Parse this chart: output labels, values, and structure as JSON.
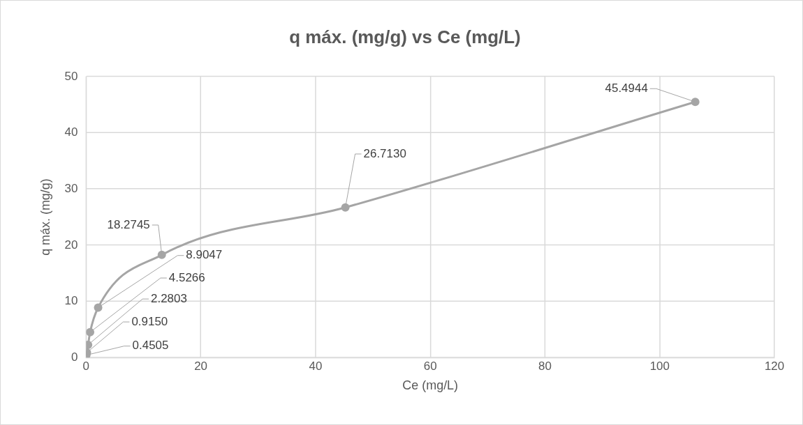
{
  "chart_data": {
    "type": "scatter",
    "title": "q máx. (mg/g) vs Ce (mg/L)",
    "xlabel": "Ce (mg/L)",
    "ylabel": "q máx. (mg/g)",
    "series": [
      {
        "type": "line",
        "color": "#a5a5a5",
        "x": [
          0.05,
          0.15,
          0.35,
          0.7,
          2.1,
          13.2,
          45.2,
          106.2
        ],
        "values": [
          0.4505,
          0.915,
          2.2803,
          4.5266,
          8.9047,
          18.2745,
          26.713,
          45.4944
        ],
        "value_labels": [
          "0.4505",
          "0.9150",
          "2.2803",
          "4.5266",
          "8.9047",
          "18.2745",
          "26.7130",
          "45.4944"
        ]
      }
    ],
    "xlim": [
      0,
      120
    ],
    "xticks": [
      0,
      20,
      40,
      60,
      80,
      100,
      120
    ],
    "ylim": [
      0,
      50
    ],
    "yticks": [
      0,
      10,
      20,
      30,
      40,
      50
    ],
    "grid": true,
    "legend": false,
    "marker": "circle",
    "line_style": "solid"
  }
}
